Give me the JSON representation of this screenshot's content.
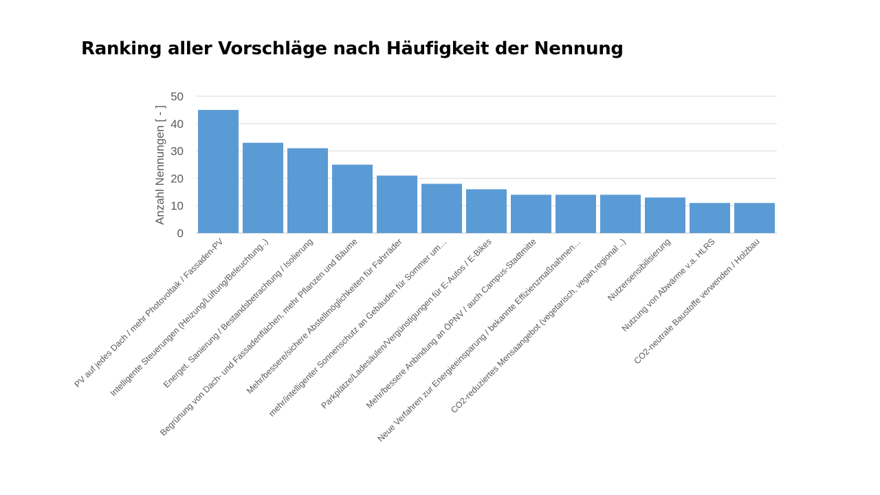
{
  "title": "Ranking aller Vorschläge nach Häufigkeit der Nennung",
  "chart_data": {
    "type": "bar",
    "title": "Ranking aller Vorschläge nach Häufigkeit der Nennung",
    "ylabel": "Anzahl Nennungen [ - ]",
    "xlabel": "",
    "ylim": [
      0,
      50
    ],
    "yticks": [
      0,
      10,
      20,
      30,
      40,
      50
    ],
    "grid": true,
    "legend": "none",
    "bar_color": "#5b9bd5",
    "categories": [
      "PV auf jedes Dach / mehr Photovoltaik / Fassaden-PV",
      "Intelligente Steuerungen (Heizung/Lüftung/Beleuchtung..)",
      "Energet. Sanierung / Bestandsbetrachtung / Isolierung",
      "Begrünung von Dach- und Fassadenflächen, mehr Pflanzen und Bäume",
      "Mehr/bessere/sichere Abstellmöglichkeiten für Fahrräder",
      "mehr/intelligenter Sonnenschutz an Gebäuden für Sommer um…",
      "Parkplätze/Ladesäulen/Vergünstigungen für E-Autos / E-Bikes",
      "Mehr/bessere Anbindung an ÖPNV / auch Campus-Stadtmitte",
      "Neue Verfahren zur Energieeinsparung / bekannte Effizienzmaßnahmen…",
      "CO2-reduziertes Mensaangebot (vegetarisch, vegan,regional ..)",
      "Nutzersensibilisierung",
      "Nutzung von Abwärme v.a. HLRS",
      "CO2-neutrale Baustoffe verwenden / Holzbau"
    ],
    "values": [
      45,
      33,
      31,
      25,
      21,
      18,
      16,
      14,
      14,
      14,
      13,
      11,
      11
    ]
  }
}
